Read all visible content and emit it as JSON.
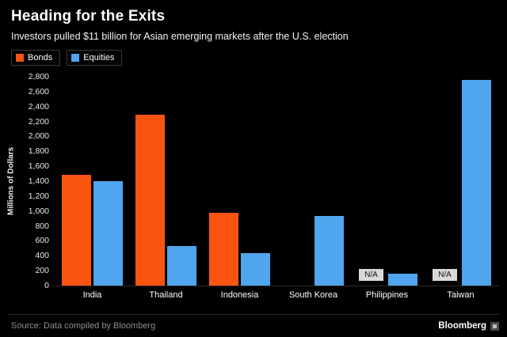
{
  "header": {
    "title": "Heading for the Exits",
    "subtitle": "Investors pulled $11 billion for Asian emerging markets after the U.S. election"
  },
  "legend": [
    {
      "label": "Bonds",
      "color": "#fa5411"
    },
    {
      "label": "Equities",
      "color": "#4fa5ee"
    }
  ],
  "chart_data": {
    "type": "bar",
    "categories": [
      "India",
      "Thailand",
      "Indonesia",
      "South Korea",
      "Philippines",
      "Taiwan"
    ],
    "series": [
      {
        "name": "Bonds",
        "color": "#fa5411",
        "values": [
          1490,
          2290,
          980,
          0,
          null,
          null
        ]
      },
      {
        "name": "Equities",
        "color": "#4fa5ee",
        "values": [
          1400,
          530,
          430,
          930,
          160,
          2760
        ]
      }
    ],
    "title": "Heading for the Exits",
    "xlabel": "",
    "ylabel": "Millions of Dollars",
    "ylim": [
      0,
      2800
    ],
    "yticks": [
      "0",
      "200",
      "400",
      "600",
      "800",
      "1,000",
      "1,200",
      "1,400",
      "1,600",
      "1,800",
      "2,000",
      "2,200",
      "2,400",
      "2,600",
      "2,800"
    ],
    "na_label": "N/A",
    "grid": false,
    "legend_position": "top-left"
  },
  "footer": {
    "source": "Source: Data compiled by Bloomberg",
    "brand": "Bloomberg"
  }
}
